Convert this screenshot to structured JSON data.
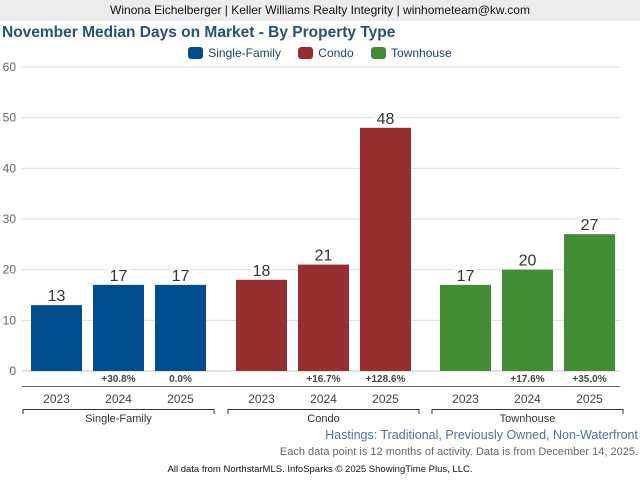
{
  "header": {
    "text": "Winona Eichelberger | Keller Williams Realty Integrity | winhometeam@kw.com"
  },
  "colors": {
    "single_family": "#004e8d",
    "condo": "#972f30",
    "townhouse": "#438c36",
    "title": "#2a4f7c"
  },
  "chart_data": {
    "type": "bar",
    "title": "November Median Days on Market - By Property Type",
    "xlabel": "",
    "ylabel": "",
    "ylim": [
      0,
      60
    ],
    "yticks": [
      0,
      10,
      20,
      30,
      40,
      50,
      60
    ],
    "grid": true,
    "legend_position": "top-center",
    "legend": [
      "Single-Family",
      "Condo",
      "Townhouse"
    ],
    "groups": [
      {
        "name": "Single-Family",
        "color_key": "single_family",
        "categories": [
          "2023",
          "2024",
          "2025"
        ],
        "values": [
          13,
          17,
          17
        ],
        "changes": [
          "",
          "+30.8%",
          "0.0%"
        ]
      },
      {
        "name": "Condo",
        "color_key": "condo",
        "categories": [
          "2023",
          "2024",
          "2025"
        ],
        "values": [
          18,
          21,
          48
        ],
        "changes": [
          "",
          "+16.7%",
          "+128.6%"
        ]
      },
      {
        "name": "Townhouse",
        "color_key": "townhouse",
        "categories": [
          "2023",
          "2024",
          "2025"
        ],
        "values": [
          17,
          20,
          27
        ],
        "changes": [
          "",
          "+17.6%",
          "+35.0%"
        ]
      }
    ]
  },
  "subtitle": "Hastings: Traditional, Previously Owned, Non-Waterfront",
  "note": "Each data point is 12 months of activity. Data is from December 14, 2025.",
  "footer": "All data from NorthstarMLS. InfoSparks © 2025 ShowingTime Plus, LLC."
}
